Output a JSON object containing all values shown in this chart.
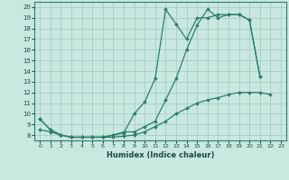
{
  "xlabel": "Humidex (Indice chaleur)",
  "x_values": [
    0,
    1,
    2,
    3,
    4,
    5,
    6,
    7,
    8,
    9,
    10,
    11,
    12,
    13,
    14,
    15,
    16,
    17,
    18,
    19,
    20,
    21,
    22,
    23
  ],
  "line1": [
    9.5,
    8.5,
    8.0,
    7.8,
    7.8,
    7.8,
    7.8,
    8.0,
    8.3,
    8.3,
    8.8,
    9.3,
    11.3,
    13.3,
    16.0,
    18.3,
    19.8,
    19.0,
    19.3,
    19.3,
    18.8,
    13.5,
    null,
    null
  ],
  "line2": [
    9.5,
    8.5,
    8.0,
    7.8,
    7.8,
    7.8,
    7.8,
    8.0,
    8.2,
    10.0,
    11.1,
    13.3,
    19.8,
    18.4,
    17.0,
    19.0,
    19.0,
    19.3,
    19.3,
    19.3,
    18.8,
    13.5,
    null,
    null
  ],
  "line3": [
    8.5,
    8.3,
    8.0,
    7.8,
    7.8,
    7.8,
    7.8,
    7.8,
    7.9,
    8.0,
    8.3,
    8.8,
    9.3,
    10.0,
    10.5,
    11.0,
    11.3,
    11.5,
    11.8,
    12.0,
    12.0,
    12.0,
    11.8,
    null
  ],
  "line_color": "#2e7d6e",
  "bg_color": "#c8e8e0",
  "grid_color": "#a0c8c0",
  "ylim": [
    7.5,
    20.5
  ],
  "xlim": [
    -0.5,
    23.5
  ],
  "yticks": [
    8,
    9,
    10,
    11,
    12,
    13,
    14,
    15,
    16,
    17,
    18,
    19,
    20
  ],
  "xticks": [
    0,
    1,
    2,
    3,
    4,
    5,
    6,
    7,
    8,
    9,
    10,
    11,
    12,
    13,
    14,
    15,
    16,
    17,
    18,
    19,
    20,
    21,
    22,
    23
  ]
}
